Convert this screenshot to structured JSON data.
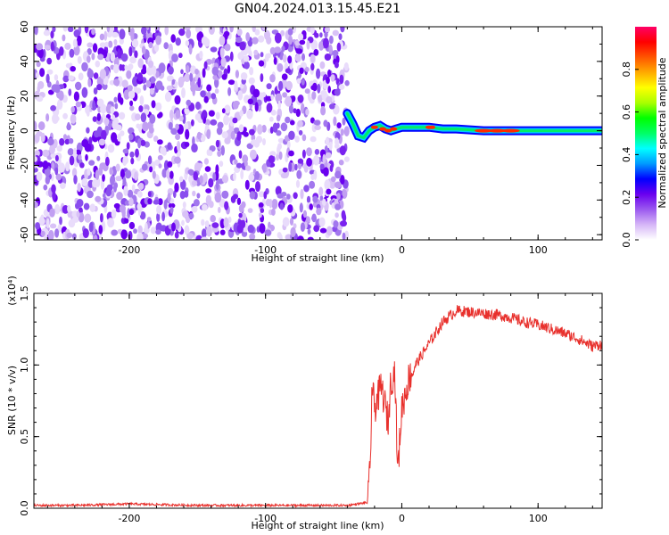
{
  "title": "GN04.2024.013.15.45.E21",
  "chart_data": [
    {
      "type": "heatmap",
      "title": "GN04.2024.013.15.45.E21",
      "xlabel": "Height of straight line (km)",
      "ylabel": "Frequency (Hz)",
      "xlim": [
        -270,
        147
      ],
      "ylim": [
        -63,
        60
      ],
      "x_ticks": [
        -200,
        -100,
        0,
        100
      ],
      "y_ticks": [
        -60,
        -40,
        -20,
        0,
        20,
        40,
        60
      ],
      "noise_region_x": [
        -270,
        -40
      ],
      "signal_start_x": -40,
      "signal_path": {
        "x": [
          -40,
          -36,
          -32,
          -28,
          -24,
          -20,
          -16,
          -12,
          -8,
          -4,
          0,
          10,
          20,
          30,
          40,
          60,
          80,
          100,
          120,
          147
        ],
        "freq": [
          10,
          4,
          -3,
          -4,
          0,
          2,
          3,
          1,
          0,
          1,
          2,
          2,
          2,
          1,
          1,
          0,
          0,
          0,
          0,
          0
        ]
      },
      "colorbar": {
        "label": "Normalized spectral amplitude",
        "range": [
          0.0,
          1.0
        ],
        "ticks": [
          0.0,
          0.2,
          0.4,
          0.6,
          0.8
        ],
        "colors": [
          "#ffffff",
          "#d6b6f7",
          "#9b59ef",
          "#6a00ef",
          "#0000ff",
          "#0099ff",
          "#00ffff",
          "#00ff66",
          "#00ff00",
          "#aaff00",
          "#ffff00",
          "#ffaa00",
          "#ff5500",
          "#ff0000",
          "#ff0066"
        ]
      }
    },
    {
      "type": "line",
      "xlabel": "Height of straight line (km)",
      "ylabel": "SNR (10 * v/v)",
      "y_multiplier": "(x10⁴)",
      "xlim": [
        -270,
        147
      ],
      "ylim": [
        0.0,
        1.5
      ],
      "x_ticks": [
        -200,
        -100,
        0,
        100
      ],
      "y_ticks": [
        0.0,
        0.5,
        1.0,
        1.5
      ],
      "y_tick_labels": [
        "0.0",
        "0.5",
        "1.0",
        "1.5"
      ],
      "line_color": "#e8302c",
      "series": [
        {
          "x": [
            -270,
            -240,
            -200,
            -150,
            -100,
            -60,
            -40,
            -25,
            -23,
            -22,
            -20,
            -15,
            -10,
            -8,
            -5,
            -3,
            0,
            5,
            10,
            20,
            30,
            40,
            50,
            60,
            70,
            80,
            90,
            100,
            110,
            120,
            130,
            140,
            147
          ],
          "values": [
            0.02,
            0.02,
            0.03,
            0.02,
            0.02,
            0.02,
            0.02,
            0.04,
            0.3,
            0.85,
            0.7,
            0.85,
            0.6,
            0.9,
            0.95,
            0.25,
            0.7,
            0.9,
            1.0,
            1.15,
            1.3,
            1.38,
            1.37,
            1.36,
            1.35,
            1.33,
            1.3,
            1.28,
            1.25,
            1.22,
            1.18,
            1.13,
            1.15
          ]
        }
      ]
    }
  ]
}
